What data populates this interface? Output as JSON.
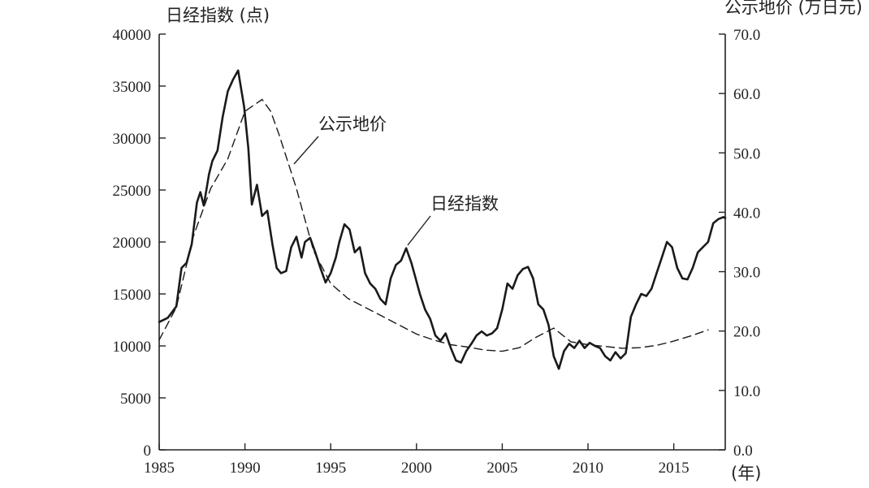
{
  "chart_data": {
    "type": "line",
    "y_left_label": "日经指数 (点)",
    "y_right_label": "公示地价 (万日元)",
    "x_unit_label": "(年)",
    "xlim": [
      1985,
      2018
    ],
    "ylim_left": [
      0,
      40000
    ],
    "ylim_right": [
      0,
      70
    ],
    "x_ticks": [
      1985,
      1990,
      1995,
      2000,
      2005,
      2010,
      2015
    ],
    "y_left_ticks": [
      "0",
      "5000",
      "10000",
      "15000",
      "20000",
      "25000",
      "30000",
      "35000",
      "40000"
    ],
    "y_right_ticks": [
      "0.0",
      "10.0",
      "20.0",
      "30.0",
      "40.0",
      "50.0",
      "60.0",
      "70.0"
    ],
    "grid": false,
    "legend": "none",
    "annotations": [
      "公示地价",
      "日经指数"
    ],
    "series": [
      {
        "name": "日经指数",
        "axis": "left",
        "style": "solid",
        "x": [
          1985.0,
          1985.5,
          1986.0,
          1986.3,
          1986.6,
          1986.9,
          1987.2,
          1987.4,
          1987.6,
          1987.9,
          1988.1,
          1988.4,
          1988.7,
          1989.0,
          1989.3,
          1989.6,
          1989.95,
          1990.2,
          1990.4,
          1990.7,
          1991.0,
          1991.3,
          1991.6,
          1991.85,
          1992.1,
          1992.4,
          1992.7,
          1993.0,
          1993.3,
          1993.5,
          1993.8,
          1994.1,
          1994.4,
          1994.7,
          1995.0,
          1995.3,
          1995.5,
          1995.8,
          1996.1,
          1996.4,
          1996.7,
          1997.0,
          1997.3,
          1997.6,
          1997.9,
          1998.2,
          1998.5,
          1998.8,
          1999.1,
          1999.4,
          1999.7,
          1999.95,
          2000.2,
          2000.5,
          2000.8,
          2001.1,
          2001.4,
          2001.7,
          2002.0,
          2002.3,
          2002.6,
          2002.9,
          2003.2,
          2003.5,
          2003.8,
          2004.1,
          2004.4,
          2004.7,
          2005.0,
          2005.3,
          2005.6,
          2005.9,
          2006.2,
          2006.5,
          2006.8,
          2007.1,
          2007.4,
          2007.7,
          2008.0,
          2008.3,
          2008.6,
          2008.9,
          2009.2,
          2009.5,
          2009.8,
          2010.1,
          2010.4,
          2010.7,
          2011.0,
          2011.3,
          2011.6,
          2011.9,
          2012.2,
          2012.5,
          2012.8,
          2013.1,
          2013.4,
          2013.7,
          2014.0,
          2014.3,
          2014.6,
          2014.9,
          2015.2,
          2015.5,
          2015.8,
          2016.1,
          2016.4,
          2016.7,
          2017.0,
          2017.3,
          2017.6,
          2017.9,
          2018.0
        ],
        "values": [
          12300,
          12700,
          13800,
          17500,
          18000,
          19800,
          23800,
          24800,
          23500,
          26500,
          27800,
          28800,
          32000,
          34500,
          35600,
          36500,
          33000,
          29000,
          23600,
          25500,
          22500,
          23000,
          19800,
          17500,
          17000,
          17200,
          19500,
          20500,
          18500,
          20000,
          20400,
          19000,
          17500,
          16100,
          17000,
          18500,
          20000,
          21700,
          21200,
          19000,
          19500,
          17000,
          16000,
          15500,
          14500,
          14000,
          16500,
          17800,
          18200,
          19400,
          18000,
          16500,
          15000,
          13500,
          12600,
          11000,
          10500,
          11200,
          9800,
          8600,
          8400,
          9500,
          10200,
          11000,
          11400,
          11000,
          11200,
          11700,
          13500,
          16000,
          15500,
          16800,
          17400,
          17600,
          16500,
          14000,
          13500,
          12000,
          9000,
          7800,
          9500,
          10200,
          9800,
          10500,
          9800,
          10300,
          10000,
          9800,
          9000,
          8600,
          9400,
          8800,
          9300,
          12800,
          14000,
          15000,
          14800,
          15500,
          17000,
          18500,
          20000,
          19500,
          17500,
          16500,
          16400,
          17500,
          19000,
          19500,
          20000,
          21800,
          22200,
          22400,
          22300
        ]
      },
      {
        "name": "公示地价",
        "axis": "right",
        "style": "dashed",
        "x": [
          1985,
          1986,
          1987,
          1988,
          1989,
          1990,
          1991,
          1991.5,
          1992,
          1993,
          1994,
          1995,
          1996,
          1997,
          1998,
          1999,
          2000,
          2001,
          2002,
          2003,
          2004,
          2005,
          2006,
          2007,
          2008,
          2009,
          2010,
          2011,
          2012,
          2013,
          2014,
          2015,
          2016,
          2017
        ],
        "values": [
          18.5,
          24,
          36,
          44,
          49,
          57,
          59,
          57,
          53,
          44,
          33.5,
          28,
          25.5,
          24,
          22.5,
          21,
          19.5,
          18.5,
          17.7,
          17.3,
          16.8,
          16.6,
          17.2,
          19,
          20.5,
          18.2,
          17.7,
          17.4,
          17.1,
          17.2,
          17.6,
          18.3,
          19.2,
          20.2
        ]
      }
    ]
  }
}
